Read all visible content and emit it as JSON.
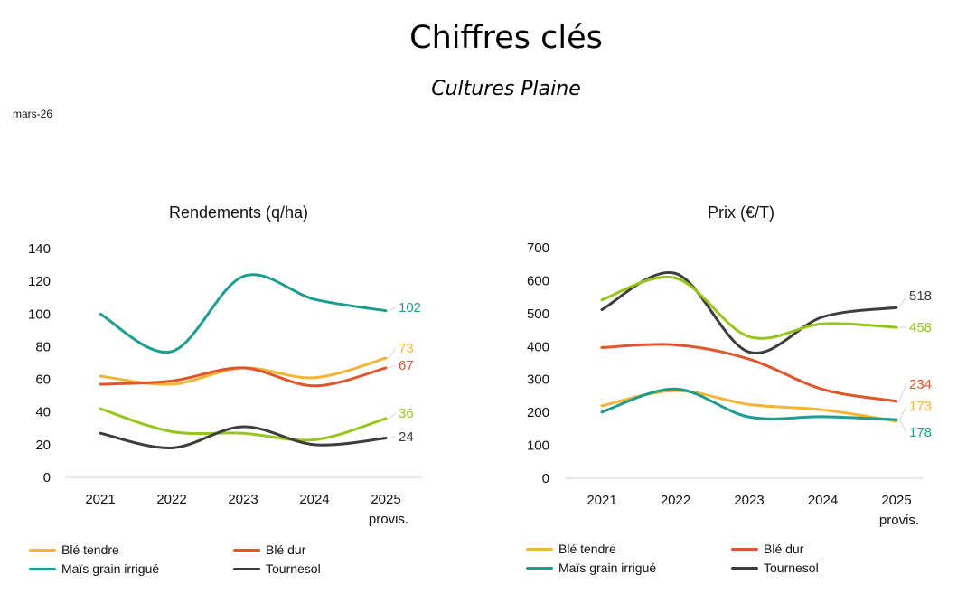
{
  "header": {
    "title": "Chiffres clés",
    "subtitle": "Cultures Plaine",
    "date": "mars-26"
  },
  "colors": {
    "ble_tendre": "#F4B436",
    "ble_dur": "#E2542A",
    "mais": "#1B9E8F",
    "tournesol": "#3D3D3D",
    "mais_prix": "#96C61B"
  },
  "chart_data": [
    {
      "type": "line",
      "title": "Rendements (q/ha)",
      "categories": [
        "2021",
        "2022",
        "2023",
        "2024",
        "2025"
      ],
      "category_sublabels": [
        "",
        "",
        "",
        "",
        "provis."
      ],
      "ylim": [
        0,
        140
      ],
      "yticks": [
        0,
        20,
        40,
        60,
        80,
        100,
        120,
        140
      ],
      "grid": false,
      "legend_position": "bottom",
      "series": [
        {
          "name": "Maïs grain irrigué",
          "values": [
            100,
            77,
            123,
            109,
            102
          ],
          "color": "#1B9E8F",
          "end_label": "102"
        },
        {
          "name": "Blé tendre",
          "values": [
            62,
            57,
            67,
            61,
            73
          ],
          "color": "#F4B436",
          "end_label": "73"
        },
        {
          "name": "Blé dur",
          "values": [
            57,
            59,
            67,
            56,
            67
          ],
          "color": "#E2542A",
          "end_label": "67"
        },
        {
          "name": "",
          "values": [
            42,
            28,
            27,
            23,
            36
          ],
          "color": "#96C61B",
          "end_label": "36"
        },
        {
          "name": "Tournesol",
          "values": [
            27,
            18,
            31,
            20,
            24
          ],
          "color": "#3D3D3D",
          "end_label": "24"
        }
      ],
      "legend": [
        {
          "label": "Blé tendre",
          "color": "#F4B436"
        },
        {
          "label": "Blé dur",
          "color": "#E2542A"
        },
        {
          "label": "Maïs grain irrigué",
          "color": "#1B9E8F"
        },
        {
          "label": "Tournesol",
          "color": "#3D3D3D"
        }
      ]
    },
    {
      "type": "line",
      "title": "Prix (€/T)",
      "categories": [
        "2021",
        "2022",
        "2023",
        "2024",
        "2025"
      ],
      "category_sublabels": [
        "",
        "",
        "",
        "",
        "provis."
      ],
      "ylim": [
        0,
        700
      ],
      "yticks": [
        0,
        100,
        200,
        300,
        400,
        500,
        600,
        700
      ],
      "grid": false,
      "legend_position": "bottom",
      "series": [
        {
          "name": "Tournesol",
          "values": [
            512,
            622,
            383,
            490,
            518
          ],
          "color": "#3D3D3D",
          "end_label": "518"
        },
        {
          "name": "",
          "values": [
            542,
            608,
            430,
            469,
            458
          ],
          "color": "#96C61B",
          "end_label": "458"
        },
        {
          "name": "Blé dur",
          "values": [
            397,
            405,
            362,
            270,
            234
          ],
          "color": "#E2542A",
          "end_label": "234"
        },
        {
          "name": "Blé tendre",
          "values": [
            220,
            266,
            224,
            208,
            173
          ],
          "color": "#F4B436",
          "end_label": "173"
        },
        {
          "name": "Maïs grain irrigué",
          "values": [
            201,
            271,
            186,
            187,
            178
          ],
          "color": "#1B9E8F",
          "end_label": "178"
        }
      ],
      "legend": [
        {
          "label": "Blé tendre",
          "color": "#F4B436"
        },
        {
          "label": "Blé dur",
          "color": "#E2542A"
        },
        {
          "label": "Maïs grain irrigué",
          "color": "#1B9E8F"
        },
        {
          "label": "Tournesol",
          "color": "#3D3D3D"
        }
      ]
    }
  ]
}
